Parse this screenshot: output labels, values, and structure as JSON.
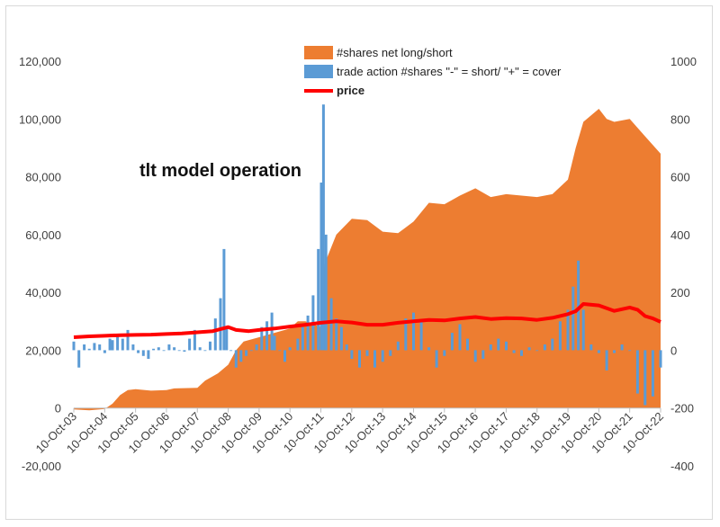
{
  "chart_data": {
    "type": "area",
    "title": "tlt model operation",
    "legend_position": "top-right",
    "grid": false,
    "y_left_lim": [
      -20000,
      120000
    ],
    "y_left_ticks": [
      "-20,000",
      "0",
      "20,000",
      "40,000",
      "60,000",
      "80,000",
      "100,000",
      "120,000"
    ],
    "y_right_lim": [
      -400,
      1000
    ],
    "y_right_ticks": [
      "-400",
      "-200",
      "0",
      "200",
      "400",
      "600",
      "800",
      "1000"
    ],
    "x_ticks": [
      "10-Oct-03",
      "10-Oct-04",
      "10-Oct-05",
      "10-Oct-06",
      "10-Oct-07",
      "10-Oct-08",
      "10-Oct-09",
      "10-Oct-10",
      "10-Oct-11",
      "10-Oct-12",
      "10-Oct-13",
      "10-Oct-14",
      "10-Oct-15",
      "10-Oct-16",
      "10-Oct-17",
      "10-Oct-18",
      "10-Oct-19",
      "10-Oct-20",
      "10-Oct-21",
      "10-Oct-22"
    ],
    "x_lim": [
      "2003-10-10",
      "2022-10-10"
    ],
    "series": [
      {
        "name": "#shares net long/short",
        "kind": "area",
        "axis": "left",
        "color": "#ED7D31",
        "points": [
          [
            "2003-10-10",
            -500
          ],
          [
            "2004-04-10",
            -800
          ],
          [
            "2004-10-10",
            -300
          ],
          [
            "2005-01-10",
            1500
          ],
          [
            "2005-04-10",
            4500
          ],
          [
            "2005-07-10",
            6200
          ],
          [
            "2005-10-10",
            6500
          ],
          [
            "2006-04-10",
            6000
          ],
          [
            "2006-10-10",
            6200
          ],
          [
            "2007-01-10",
            6800
          ],
          [
            "2007-10-10",
            7000
          ],
          [
            "2008-01-10",
            9500
          ],
          [
            "2008-06-10",
            12000
          ],
          [
            "2008-10-10",
            15000
          ],
          [
            "2009-01-10",
            20000
          ],
          [
            "2009-04-10",
            23000
          ],
          [
            "2009-10-10",
            24500
          ],
          [
            "2010-04-10",
            26000
          ],
          [
            "2010-10-10",
            27500
          ],
          [
            "2011-01-10",
            30000
          ],
          [
            "2011-04-10",
            30000
          ],
          [
            "2011-07-10",
            29000
          ],
          [
            "2011-10-10",
            28000
          ],
          [
            "2011-11-25",
            50000
          ],
          [
            "2012-04-10",
            60000
          ],
          [
            "2012-10-10",
            65500
          ],
          [
            "2013-04-10",
            65000
          ],
          [
            "2013-10-10",
            61000
          ],
          [
            "2014-04-10",
            60500
          ],
          [
            "2014-10-10",
            64500
          ],
          [
            "2015-04-10",
            71000
          ],
          [
            "2015-10-10",
            70500
          ],
          [
            "2016-04-10",
            73500
          ],
          [
            "2016-10-10",
            76000
          ],
          [
            "2017-04-10",
            73000
          ],
          [
            "2017-10-10",
            74000
          ],
          [
            "2018-04-10",
            73500
          ],
          [
            "2018-10-10",
            73000
          ],
          [
            "2019-04-10",
            74000
          ],
          [
            "2019-10-10",
            79000
          ],
          [
            "2020-01-10",
            90000
          ],
          [
            "2020-04-10",
            99000
          ],
          [
            "2020-10-10",
            103500
          ],
          [
            "2021-01-10",
            100000
          ],
          [
            "2021-04-10",
            99000
          ],
          [
            "2021-10-10",
            100000
          ],
          [
            "2022-04-10",
            94000
          ],
          [
            "2022-10-10",
            88000
          ]
        ]
      },
      {
        "name": "trade action #shares \"-\" = short/ \"+\" = cover",
        "kind": "bar",
        "axis": "left",
        "color": "#5B9BD5",
        "points": [
          [
            "2003-10-10",
            23000
          ],
          [
            "2003-12-10",
            14000
          ],
          [
            "2004-02-10",
            22000
          ],
          [
            "2004-04-10",
            20500
          ],
          [
            "2004-06-10",
            22500
          ],
          [
            "2004-08-10",
            22000
          ],
          [
            "2004-10-10",
            19000
          ],
          [
            "2004-12-10",
            24000
          ],
          [
            "2005-01-10",
            23500
          ],
          [
            "2005-03-10",
            25500
          ],
          [
            "2005-05-10",
            24000
          ],
          [
            "2005-07-10",
            27000
          ],
          [
            "2005-09-10",
            22000
          ],
          [
            "2005-11-10",
            19000
          ],
          [
            "2006-01-10",
            18000
          ],
          [
            "2006-03-10",
            17000
          ],
          [
            "2006-05-10",
            20500
          ],
          [
            "2006-07-10",
            21000
          ],
          [
            "2006-09-10",
            20000
          ],
          [
            "2006-11-10",
            22000
          ],
          [
            "2007-01-10",
            21000
          ],
          [
            "2007-03-10",
            20000
          ],
          [
            "2007-05-10",
            19500
          ],
          [
            "2007-07-10",
            24000
          ],
          [
            "2007-09-10",
            27000
          ],
          [
            "2007-11-10",
            21000
          ],
          [
            "2008-01-10",
            20000
          ],
          [
            "2008-03-10",
            23000
          ],
          [
            "2008-05-10",
            31000
          ],
          [
            "2008-07-10",
            38000
          ],
          [
            "2008-08-20",
            55000
          ],
          [
            "2008-09-20",
            28000
          ],
          [
            "2008-11-10",
            20000
          ],
          [
            "2009-01-10",
            14000
          ],
          [
            "2009-03-10",
            16000
          ],
          [
            "2009-05-10",
            18000
          ],
          [
            "2009-07-10",
            20000
          ],
          [
            "2009-09-10",
            22000
          ],
          [
            "2009-11-10",
            28000
          ],
          [
            "2010-01-10",
            30000
          ],
          [
            "2010-03-10",
            33000
          ],
          [
            "2010-04-10",
            25000
          ],
          [
            "2010-06-10",
            20000
          ],
          [
            "2010-08-10",
            16000
          ],
          [
            "2010-10-10",
            21000
          ],
          [
            "2011-01-10",
            24000
          ],
          [
            "2011-03-10",
            28000
          ],
          [
            "2011-05-10",
            32000
          ],
          [
            "2011-07-10",
            39000
          ],
          [
            "2011-09-10",
            55000
          ],
          [
            "2011-10-15",
            78000
          ],
          [
            "2011-11-10",
            105000
          ],
          [
            "2011-12-10",
            60000
          ],
          [
            "2012-02-10",
            38000
          ],
          [
            "2012-04-10",
            31000
          ],
          [
            "2012-06-10",
            28000
          ],
          [
            "2012-08-10",
            22000
          ],
          [
            "2012-10-10",
            17000
          ],
          [
            "2013-01-10",
            14000
          ],
          [
            "2013-04-10",
            18000
          ],
          [
            "2013-07-10",
            14000
          ],
          [
            "2013-10-10",
            16000
          ],
          [
            "2014-01-10",
            18000
          ],
          [
            "2014-04-10",
            23000
          ],
          [
            "2014-07-10",
            31000
          ],
          [
            "2014-10-10",
            33000
          ],
          [
            "2015-01-10",
            30000
          ],
          [
            "2015-04-10",
            21000
          ],
          [
            "2015-07-10",
            14000
          ],
          [
            "2015-10-10",
            18000
          ],
          [
            "2016-01-10",
            26000
          ],
          [
            "2016-04-10",
            29000
          ],
          [
            "2016-07-10",
            24000
          ],
          [
            "2016-10-10",
            16000
          ],
          [
            "2017-01-10",
            17000
          ],
          [
            "2017-04-10",
            22000
          ],
          [
            "2017-07-10",
            24000
          ],
          [
            "2017-10-10",
            23000
          ],
          [
            "2018-01-10",
            19000
          ],
          [
            "2018-04-10",
            18000
          ],
          [
            "2018-07-10",
            21000
          ],
          [
            "2018-10-10",
            20000
          ],
          [
            "2019-01-10",
            22000
          ],
          [
            "2019-04-10",
            24000
          ],
          [
            "2019-07-10",
            30000
          ],
          [
            "2019-10-10",
            34000
          ],
          [
            "2019-12-10",
            42000
          ],
          [
            "2020-02-10",
            51000
          ],
          [
            "2020-04-10",
            34000
          ],
          [
            "2020-07-10",
            22000
          ],
          [
            "2020-10-10",
            19000
          ],
          [
            "2021-01-10",
            13000
          ],
          [
            "2021-04-10",
            19000
          ],
          [
            "2021-07-10",
            22000
          ],
          [
            "2021-10-10",
            20000
          ],
          [
            "2022-01-10",
            5000
          ],
          [
            "2022-04-10",
            1000
          ],
          [
            "2022-07-10",
            4000
          ],
          [
            "2022-10-10",
            14000
          ]
        ]
      },
      {
        "name": "price",
        "kind": "line",
        "axis": "right",
        "color": "#FF0000",
        "points": [
          [
            "2003-10-10",
            45
          ],
          [
            "2004-04-10",
            48
          ],
          [
            "2004-10-10",
            50
          ],
          [
            "2005-04-10",
            52
          ],
          [
            "2005-10-10",
            53
          ],
          [
            "2006-04-10",
            54
          ],
          [
            "2006-10-10",
            56
          ],
          [
            "2007-04-10",
            58
          ],
          [
            "2007-10-10",
            62
          ],
          [
            "2008-04-10",
            66
          ],
          [
            "2008-10-10",
            80
          ],
          [
            "2009-01-10",
            70
          ],
          [
            "2009-06-10",
            66
          ],
          [
            "2009-10-10",
            70
          ],
          [
            "2010-04-10",
            75
          ],
          [
            "2010-10-10",
            82
          ],
          [
            "2011-04-10",
            88
          ],
          [
            "2011-10-10",
            95
          ],
          [
            "2012-04-10",
            100
          ],
          [
            "2012-10-10",
            96
          ],
          [
            "2013-04-10",
            88
          ],
          [
            "2013-10-10",
            88
          ],
          [
            "2014-04-10",
            95
          ],
          [
            "2014-10-10",
            100
          ],
          [
            "2015-04-10",
            105
          ],
          [
            "2015-10-10",
            103
          ],
          [
            "2016-04-10",
            110
          ],
          [
            "2016-10-10",
            115
          ],
          [
            "2017-04-10",
            108
          ],
          [
            "2017-10-10",
            111
          ],
          [
            "2018-04-10",
            110
          ],
          [
            "2018-10-10",
            105
          ],
          [
            "2019-04-10",
            112
          ],
          [
            "2019-10-10",
            125
          ],
          [
            "2020-01-10",
            135
          ],
          [
            "2020-04-10",
            160
          ],
          [
            "2020-10-10",
            155
          ],
          [
            "2021-04-10",
            136
          ],
          [
            "2021-10-10",
            148
          ],
          [
            "2022-01-10",
            140
          ],
          [
            "2022-04-10",
            118
          ],
          [
            "2022-07-10",
            110
          ],
          [
            "2022-10-10",
            98
          ]
        ]
      }
    ]
  }
}
